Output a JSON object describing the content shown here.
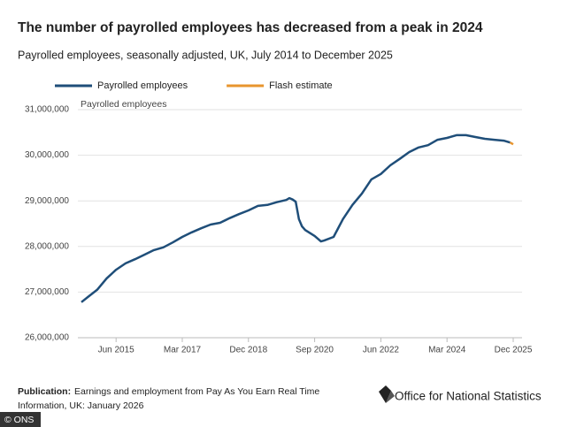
{
  "chart_data": {
    "type": "line",
    "title": "The number of payrolled employees has decreased from a peak in 2024",
    "subtitle": "Payrolled employees, seasonally adjusted, UK, July 2014 to December 2025",
    "y_label": "Payrolled employees",
    "x": [
      "Jul 2014",
      "Sep 2014",
      "Dec 2014",
      "Mar 2015",
      "Jun 2015",
      "Sep 2015",
      "Dec 2015",
      "Mar 2016",
      "Jun 2016",
      "Sep 2016",
      "Dec 2016",
      "Mar 2017",
      "Jun 2017",
      "Sep 2017",
      "Dec 2017",
      "Mar 2018",
      "Jun 2018",
      "Sep 2018",
      "Dec 2018",
      "Mar 2019",
      "Jun 2019",
      "Sep 2019",
      "Dec 2019",
      "Jan 2020",
      "Feb 2020",
      "Mar 2020",
      "Apr 2020",
      "May 2020",
      "Jun 2020",
      "Sep 2020",
      "Nov 2020",
      "Dec 2020",
      "Mar 2021",
      "Jun 2021",
      "Sep 2021",
      "Dec 2021",
      "Mar 2022",
      "Jun 2022",
      "Sep 2022",
      "Dec 2022",
      "Mar 2023",
      "Jun 2023",
      "Sep 2023",
      "Dec 2023",
      "Mar 2024",
      "Jun 2024",
      "Sep 2024",
      "Dec 2024",
      "Mar 2025",
      "Jun 2025",
      "Sep 2025",
      "Nov 2025",
      "Dec 2025"
    ],
    "series": [
      {
        "name": "Payrolled employees",
        "color": "#1f4e79",
        "values": [
          26780000,
          26890000,
          27050000,
          27300000,
          27490000,
          27630000,
          27720000,
          27820000,
          27920000,
          27980000,
          28090000,
          28210000,
          28310000,
          28400000,
          28480000,
          28520000,
          28620000,
          28710000,
          28790000,
          28890000,
          28910000,
          28970000,
          29020000,
          29060000,
          29030000,
          28980000,
          28600000,
          28440000,
          28360000,
          28230000,
          28110000,
          28130000,
          28210000,
          28600000,
          28910000,
          29160000,
          29470000,
          29590000,
          29780000,
          29920000,
          30070000,
          30170000,
          30220000,
          30340000,
          30380000,
          30440000,
          30440000,
          30400000,
          30360000,
          30340000,
          30320000,
          30280000,
          null
        ]
      },
      {
        "name": "Flash estimate",
        "color": "#e8952e",
        "values": [
          null,
          null,
          null,
          null,
          null,
          null,
          null,
          null,
          null,
          null,
          null,
          null,
          null,
          null,
          null,
          null,
          null,
          null,
          null,
          null,
          null,
          null,
          null,
          null,
          null,
          null,
          null,
          null,
          null,
          null,
          null,
          null,
          null,
          null,
          null,
          null,
          null,
          null,
          null,
          null,
          null,
          null,
          null,
          null,
          null,
          null,
          null,
          null,
          null,
          null,
          null,
          30280000,
          30240000
        ]
      }
    ],
    "ylim": [
      26000000,
      31000000
    ],
    "yticks": [
      {
        "value": 26000000,
        "label": "26,000,000"
      },
      {
        "value": 27000000,
        "label": "27,000,000"
      },
      {
        "value": 28000000,
        "label": "28,000,000"
      },
      {
        "value": 29000000,
        "label": "29,000,000"
      },
      {
        "value": 30000000,
        "label": "30,000,000"
      },
      {
        "value": 31000000,
        "label": "31,000,000"
      }
    ],
    "xlim": [
      "Jul 2014",
      "Dec 2025"
    ],
    "xticks": [
      "Jun 2015",
      "Mar 2017",
      "Dec 2018",
      "Sep 2020",
      "Jun 2022",
      "Mar 2024",
      "Dec 2025"
    ],
    "grid": true,
    "legend": "top-left"
  },
  "footer": {
    "publication_label": "Publication:",
    "publication_line1": "Earnings and employment from Pay As You Earn Real Time",
    "publication_line2": "Information, UK: January 2026",
    "logo": "Office for National Statistics",
    "credit": "© ONS"
  }
}
